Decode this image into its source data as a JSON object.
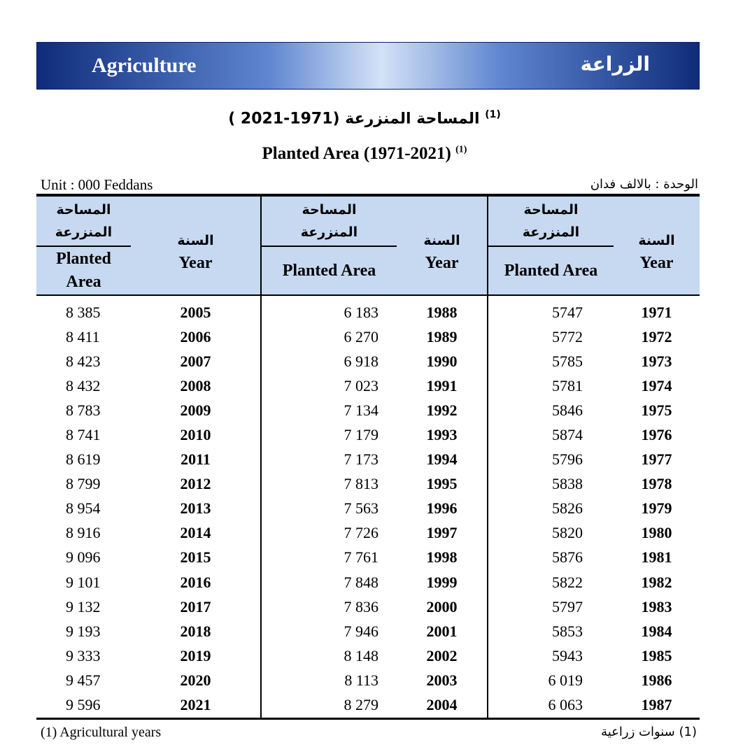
{
  "banner": {
    "title_en": "Agriculture",
    "title_ar": "الزراعة"
  },
  "title": {
    "ar": "المساحة المنزرعة (1971-2021 )",
    "en": "Planted Area (1971-2021)",
    "note_ref": "(1)"
  },
  "unit": {
    "en": "Unit : 000 Feddans",
    "ar": "الوحدة : بالالف فدان"
  },
  "headers": {
    "area_ar_line1": "المساحة",
    "area_ar_line2": "المنزرعة",
    "area_en": "Planted Area",
    "area_en_line1": "Planted",
    "area_en_line2": "Area",
    "year_ar": "السنة",
    "year_en": "Year"
  },
  "rows": [
    {
      "y1": "2005",
      "a1": "8 385",
      "y2": "1988",
      "a2": "6 183",
      "y3": "1971",
      "a3": "5747"
    },
    {
      "y1": "2006",
      "a1": "8 411",
      "y2": "1989",
      "a2": "6 270",
      "y3": "1972",
      "a3": "5772"
    },
    {
      "y1": "2007",
      "a1": "8 423",
      "y2": "1990",
      "a2": "6 918",
      "y3": "1973",
      "a3": "5785"
    },
    {
      "y1": "2008",
      "a1": "8 432",
      "y2": "1991",
      "a2": "7 023",
      "y3": "1974",
      "a3": "5781"
    },
    {
      "y1": "2009",
      "a1": "8 783",
      "y2": "1992",
      "a2": "7 134",
      "y3": "1975",
      "a3": "5846"
    },
    {
      "y1": "2010",
      "a1": "8 741",
      "y2": "1993",
      "a2": "7 179",
      "y3": "1976",
      "a3": "5874"
    },
    {
      "y1": "2011",
      "a1": "8 619",
      "y2": "1994",
      "a2": "7 173",
      "y3": "1977",
      "a3": "5796"
    },
    {
      "y1": "2012",
      "a1": "8 799",
      "y2": "1995",
      "a2": "7 813",
      "y3": "1978",
      "a3": "5838"
    },
    {
      "y1": "2013",
      "a1": "8 954",
      "y2": "1996",
      "a2": "7 563",
      "y3": "1979",
      "a3": "5826"
    },
    {
      "y1": "2014",
      "a1": "8 916",
      "y2": "1997",
      "a2": "7 726",
      "y3": "1980",
      "a3": "5820"
    },
    {
      "y1": "2015",
      "a1": "9 096",
      "y2": "1998",
      "a2": "7 761",
      "y3": "1981",
      "a3": "5876"
    },
    {
      "y1": "2016",
      "a1": "9 101",
      "y2": "1999",
      "a2": "7 848",
      "y3": "1982",
      "a3": "5822"
    },
    {
      "y1": "2017",
      "a1": "9 132",
      "y2": "2000",
      "a2": "7 836",
      "y3": "1983",
      "a3": "5797"
    },
    {
      "y1": "2018",
      "a1": "9 193",
      "y2": "2001",
      "a2": "7 946",
      "y3": "1984",
      "a3": "5853"
    },
    {
      "y1": "2019",
      "a1": "9 333",
      "y2": "2002",
      "a2": "8 148",
      "y3": "1985",
      "a3": "5943"
    },
    {
      "y1": "2020",
      "a1": "9 457",
      "y2": "2003",
      "a2": "8 113",
      "y3": "1986",
      "a3": "6 019"
    },
    {
      "y1": "2021",
      "a1": "9 596",
      "y2": "2004",
      "a2": "8 279",
      "y3": "1987",
      "a3": "6 063"
    }
  ],
  "footnote": {
    "en": "(1) Agricultural years",
    "ar": "(1) سنوات زراعية"
  }
}
